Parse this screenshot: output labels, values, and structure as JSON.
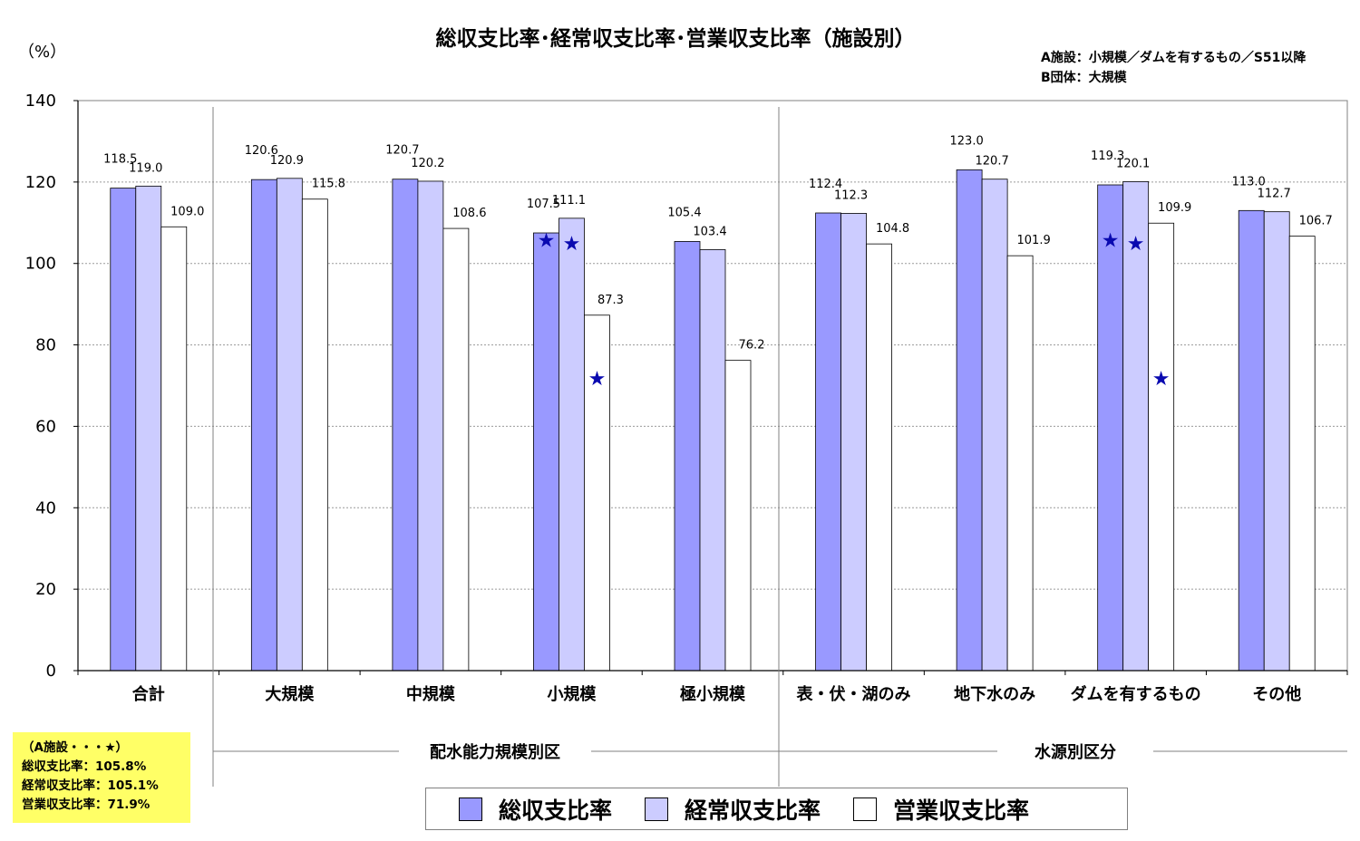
{
  "title": "総収支比率･経常収支比率･営業収支比率（施設別）",
  "unit_label": "（%）",
  "notes": [
    "A施設：小規模／ダムを有するもの／S51以降",
    "B団体：大規模"
  ],
  "group_labels": [
    "配水能力規模別区",
    "水源別区分"
  ],
  "yellow_box": {
    "header": "（A施設・・・★）",
    "lines": [
      "総収支比率：105.8%",
      "経常収支比率：105.1%",
      "営業収支比率：71.9%"
    ]
  },
  "colors": {
    "series1": "#9999ff",
    "series2": "#ccccff",
    "series3": "#ffffff",
    "star": "#0a0ab0",
    "note_bg": "#ffff66"
  },
  "chart_data": {
    "type": "bar",
    "title": "総収支比率･経常収支比率･営業収支比率（施設別）",
    "ylabel": "（%）",
    "ylim": [
      0,
      140
    ],
    "yticks": [
      0,
      20,
      40,
      60,
      80,
      100,
      120,
      140
    ],
    "grid": true,
    "legend_position": "bottom",
    "categories": [
      "合計",
      "大規模",
      "中規模",
      "小規模",
      "極小規模",
      "表・伏・湖のみ",
      "地下水のみ",
      "ダムを有するもの",
      "その他"
    ],
    "series": [
      {
        "name": "総収支比率",
        "values": [
          118.5,
          120.6,
          120.7,
          107.5,
          105.4,
          112.4,
          123.0,
          119.3,
          113.0
        ]
      },
      {
        "name": "経常収支比率",
        "values": [
          119.0,
          120.9,
          120.2,
          111.1,
          103.4,
          112.3,
          120.7,
          120.1,
          112.7
        ]
      },
      {
        "name": "営業収支比率",
        "values": [
          109.0,
          115.8,
          108.6,
          87.3,
          76.2,
          104.8,
          101.9,
          109.9,
          106.7
        ]
      }
    ],
    "data_labels": [
      [
        "118.5",
        "120.6",
        "120.7",
        "107.5",
        "105.4",
        "112.4",
        "123.0",
        "119.3",
        "113.0"
      ],
      [
        "119.0",
        "120.9",
        "120.2",
        "111.1",
        "103.4",
        "112.3",
        "120.7",
        "120.1",
        "112.7"
      ],
      [
        "109.0",
        "115.8",
        "108.6",
        "87.3",
        "76.2",
        "104.8",
        "101.9",
        "109.9",
        "106.7"
      ]
    ],
    "markers": [
      {
        "symbol": "★",
        "category": "小規模",
        "series": "総収支比率",
        "value": 105.8
      },
      {
        "symbol": "★",
        "category": "小規模",
        "series": "経常収支比率",
        "value": 105.1
      },
      {
        "symbol": "★",
        "category": "小規模",
        "series": "営業収支比率",
        "value": 71.9
      },
      {
        "symbol": "★",
        "category": "ダムを有するもの",
        "series": "総収支比率",
        "value": 105.8
      },
      {
        "symbol": "★",
        "category": "ダムを有するもの",
        "series": "経常収支比率",
        "value": 105.1
      },
      {
        "symbol": "★",
        "category": "ダムを有するもの",
        "series": "営業収支比率",
        "value": 71.9
      }
    ]
  }
}
